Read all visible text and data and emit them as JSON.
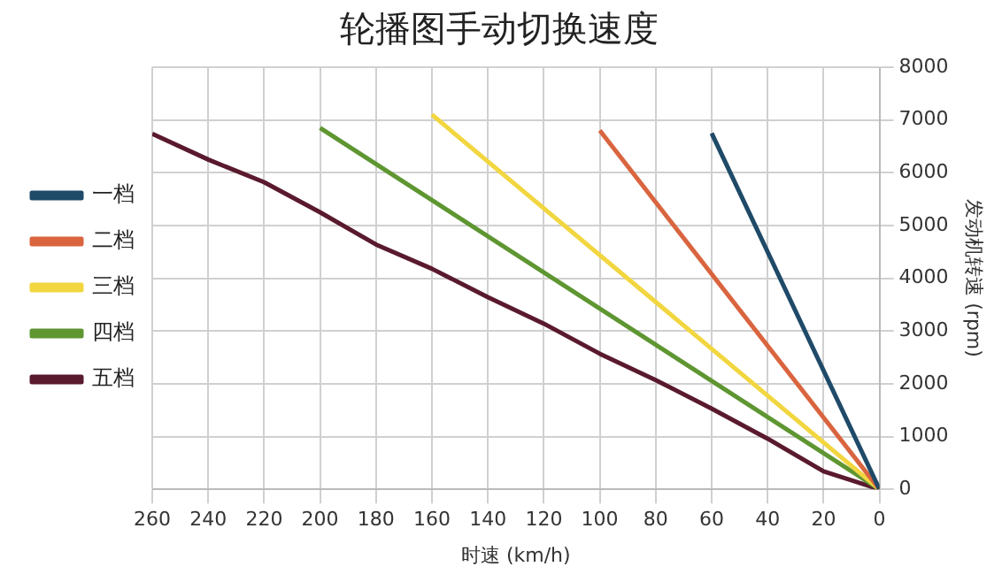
{
  "chart_data": {
    "type": "line",
    "title": "轮播图手动切换速度",
    "xlabel": "时速 (km/h)",
    "ylabel": "发动机转速 (rpm)",
    "series": [
      {
        "name": "一档",
        "color": "#1f4a68",
        "x": [
          0,
          60
        ],
        "values": [
          0,
          6750
        ]
      },
      {
        "name": "二档",
        "color": "#d9653f",
        "x": [
          0,
          100
        ],
        "values": [
          0,
          6800
        ]
      },
      {
        "name": "三档",
        "color": "#f2d640",
        "x": [
          0,
          160
        ],
        "values": [
          0,
          7100
        ]
      },
      {
        "name": "四档",
        "color": "#5e9631",
        "x": [
          0,
          200
        ],
        "values": [
          0,
          6850
        ]
      },
      {
        "name": "五档",
        "color": "#5a1a2e",
        "x": [
          0,
          20,
          40,
          60,
          80,
          100,
          120,
          140,
          160,
          180,
          200,
          220,
          240,
          260
        ],
        "values": [
          0,
          340,
          960,
          1530,
          2070,
          2570,
          3140,
          3640,
          4180,
          4640,
          5250,
          5820,
          6250,
          6740
        ]
      }
    ],
    "xlim": [
      260,
      0
    ],
    "xticks": [
      260,
      240,
      220,
      200,
      180,
      160,
      140,
      120,
      100,
      80,
      60,
      40,
      20,
      0
    ],
    "ylim": [
      0,
      8000
    ],
    "yticks": [
      0,
      1000,
      2000,
      3000,
      4000,
      5000,
      6000,
      7000,
      8000
    ],
    "grid": true,
    "legend": "left",
    "marker": "none",
    "line_style": "solid"
  }
}
